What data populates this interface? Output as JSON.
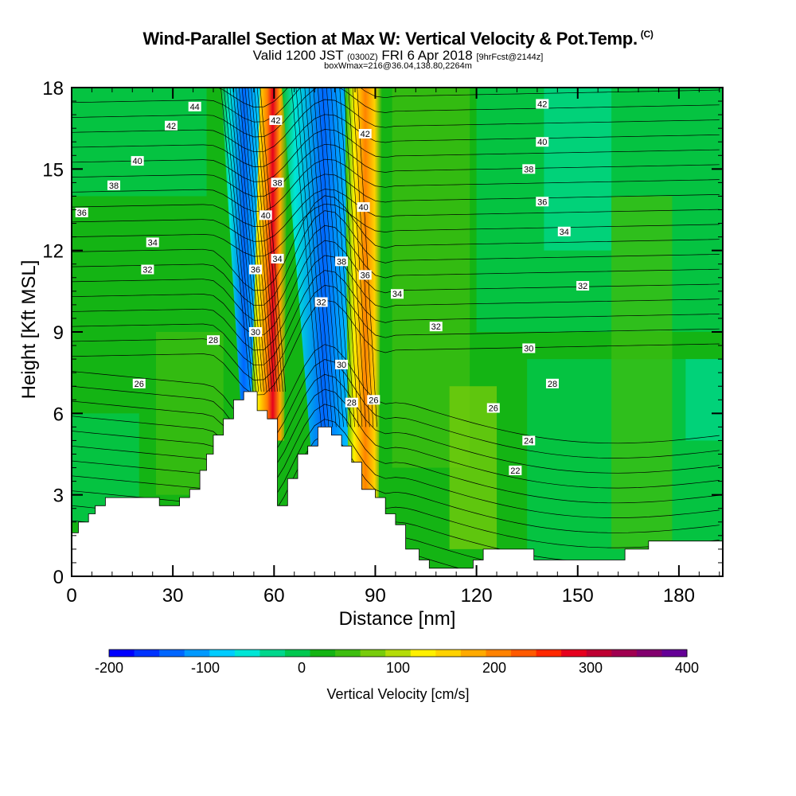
{
  "chart_data": {
    "type": "heatmap",
    "title": "Wind-Parallel Section at Max W: Vertical Velocity & Pot.Temp.",
    "title_mark": "(C)",
    "subtitle_main_a": "Valid 1200 JST",
    "subtitle_utc": "(0300Z)",
    "subtitle_main_b": "FRI 6 Apr 2018",
    "subtitle_fcst": "[9hrFcst@2144z]",
    "subtitle2": "boxWmax=216@36.04,138.80,2264m",
    "xlabel": "Distance [nm]",
    "ylabel": "Height [Kft MSL]",
    "xlim": [
      0,
      193
    ],
    "ylim": [
      0,
      18
    ],
    "xticks": [
      "0",
      "30",
      "60",
      "90",
      "120",
      "150",
      "180"
    ],
    "yticks": [
      "0",
      "3",
      "6",
      "9",
      "12",
      "15",
      "18"
    ],
    "colorbar": {
      "label": "Vertical Velocity [cm/s]",
      "range": [
        -200,
        400
      ],
      "ticks": [
        "-200",
        "-100",
        "0",
        "100",
        "200",
        "300",
        "400"
      ],
      "colors": [
        "#0000ff",
        "#0033ff",
        "#0066ff",
        "#0099ff",
        "#00ccff",
        "#00e6d6",
        "#00d78c",
        "#00c850",
        "#14b414",
        "#3ebe10",
        "#78cc0c",
        "#b4dc08",
        "#fff000",
        "#ffd200",
        "#ffaa00",
        "#ff8200",
        "#ff5a00",
        "#ff2800",
        "#e6001e",
        "#be0032",
        "#a00050",
        "#82006e",
        "#640096"
      ]
    },
    "terrain_profile": {
      "distance_nm": [
        0,
        2,
        2,
        5,
        5,
        7,
        7,
        10,
        10,
        13,
        13,
        16,
        16,
        26,
        26,
        32,
        32,
        35,
        35,
        38,
        38,
        40,
        40,
        42,
        42,
        45,
        45,
        48,
        48,
        51,
        51,
        55,
        55,
        58,
        58,
        61,
        61,
        64,
        64,
        67,
        67,
        70,
        70,
        73,
        73,
        77,
        77,
        80,
        80,
        83,
        83,
        86,
        86,
        90,
        90,
        93,
        93,
        96,
        96,
        99,
        99,
        103,
        103,
        106,
        106,
        109,
        109,
        119,
        119,
        122,
        122,
        128,
        128,
        137,
        137,
        154,
        154,
        164,
        164,
        171,
        171,
        193
      ],
      "height_kft": [
        1.6,
        1.6,
        2.0,
        2.0,
        2.3,
        2.3,
        2.6,
        2.6,
        2.9,
        2.9,
        2.9,
        2.9,
        2.9,
        2.9,
        2.6,
        2.6,
        2.9,
        2.9,
        3.2,
        3.2,
        3.9,
        3.9,
        4.5,
        4.5,
        5.2,
        5.2,
        5.8,
        5.8,
        6.5,
        6.5,
        6.8,
        6.8,
        6.1,
        6.1,
        5.8,
        5.8,
        2.6,
        2.6,
        3.6,
        3.6,
        4.5,
        4.5,
        4.8,
        4.8,
        5.5,
        5.5,
        5.2,
        5.2,
        4.8,
        4.8,
        4.2,
        4.2,
        3.2,
        3.2,
        2.9,
        2.9,
        2.3,
        2.3,
        1.9,
        1.9,
        1.0,
        1.0,
        0.6,
        0.6,
        0.3,
        0.3,
        0.3,
        0.3,
        0.6,
        0.6,
        1.0,
        1.0,
        1.0,
        1.0,
        0.6,
        0.6,
        0.6,
        0.6,
        1.0,
        1.0,
        1.3,
        1.3
      ]
    },
    "velocity_features": [
      {
        "kind": "updraft",
        "path_nm": [
          [
            60,
            18
          ],
          [
            56,
            7
          ]
        ],
        "value_cms": 300
      },
      {
        "kind": "downdraft",
        "path_nm": [
          [
            52,
            18
          ],
          [
            55,
            7
          ]
        ],
        "value_cms": -150
      },
      {
        "kind": "downdraft",
        "path_nm": [
          [
            68,
            18
          ],
          [
            80,
            6
          ]
        ],
        "value_cms": -150
      },
      {
        "kind": "updraft",
        "path_nm": [
          [
            87,
            18
          ],
          [
            86,
            6
          ]
        ],
        "value_cms": 220
      }
    ],
    "potential_temperature_labels": [
      {
        "value": "44",
        "x": 36.5,
        "y": 17.3
      },
      {
        "value": "42",
        "x": 29.5,
        "y": 16.6
      },
      {
        "value": "40",
        "x": 19.5,
        "y": 15.3
      },
      {
        "value": "38",
        "x": 12.5,
        "y": 14.4
      },
      {
        "value": "36",
        "x": 3.0,
        "y": 13.4
      },
      {
        "value": "34",
        "x": 24.0,
        "y": 12.3
      },
      {
        "value": "32",
        "x": 22.5,
        "y": 11.3
      },
      {
        "value": "28",
        "x": 42.0,
        "y": 8.7
      },
      {
        "value": "26",
        "x": 20.0,
        "y": 7.1
      },
      {
        "value": "42",
        "x": 60.5,
        "y": 16.8
      },
      {
        "value": "38",
        "x": 61.0,
        "y": 14.5
      },
      {
        "value": "40",
        "x": 57.5,
        "y": 13.3
      },
      {
        "value": "34",
        "x": 61.0,
        "y": 11.7
      },
      {
        "value": "36",
        "x": 54.5,
        "y": 11.3
      },
      {
        "value": "30",
        "x": 54.5,
        "y": 9.0
      },
      {
        "value": "42",
        "x": 87.0,
        "y": 16.3
      },
      {
        "value": "40",
        "x": 86.5,
        "y": 13.6
      },
      {
        "value": "38",
        "x": 80.0,
        "y": 11.6
      },
      {
        "value": "36",
        "x": 87.0,
        "y": 11.1
      },
      {
        "value": "32",
        "x": 74.0,
        "y": 10.1
      },
      {
        "value": "34",
        "x": 96.5,
        "y": 10.4
      },
      {
        "value": "30",
        "x": 80.0,
        "y": 7.8
      },
      {
        "value": "28",
        "x": 83.0,
        "y": 6.4
      },
      {
        "value": "26",
        "x": 89.5,
        "y": 6.5
      },
      {
        "value": "42",
        "x": 139.5,
        "y": 17.4
      },
      {
        "value": "40",
        "x": 139.5,
        "y": 16.0
      },
      {
        "value": "38",
        "x": 135.5,
        "y": 15.0
      },
      {
        "value": "36",
        "x": 139.5,
        "y": 13.8
      },
      {
        "value": "34",
        "x": 146.0,
        "y": 12.7
      },
      {
        "value": "32",
        "x": 151.5,
        "y": 10.7
      },
      {
        "value": "32",
        "x": 108.0,
        "y": 9.2
      },
      {
        "value": "30",
        "x": 135.5,
        "y": 8.4
      },
      {
        "value": "28",
        "x": 142.5,
        "y": 7.1
      },
      {
        "value": "26",
        "x": 125.0,
        "y": 6.2
      },
      {
        "value": "24",
        "x": 135.5,
        "y": 5.0
      },
      {
        "value": "22",
        "x": 131.5,
        "y": 3.9
      }
    ]
  }
}
